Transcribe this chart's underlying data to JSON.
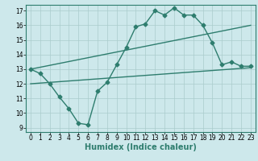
{
  "line1_x": [
    0,
    1,
    2,
    3,
    4,
    5,
    6,
    7,
    8,
    9,
    10,
    11,
    12,
    13,
    14,
    15,
    16,
    17,
    18,
    19,
    20,
    21,
    22,
    23
  ],
  "line1_y": [
    13.0,
    12.7,
    12.0,
    11.1,
    10.3,
    9.3,
    9.2,
    11.5,
    12.1,
    13.3,
    14.5,
    15.9,
    16.1,
    17.0,
    16.7,
    17.2,
    16.7,
    16.7,
    16.0,
    14.8,
    13.3,
    13.5,
    13.2,
    13.2
  ],
  "line2_x": [
    0,
    23
  ],
  "line2_y": [
    12.0,
    13.1
  ],
  "line3_x": [
    0,
    23
  ],
  "line3_y": [
    13.0,
    16.0
  ],
  "line_color": "#2e7d6e",
  "bg_color": "#cde8eb",
  "grid_color": "#aacccc",
  "xlabel": "Humidex (Indice chaleur)",
  "xlim_min": -0.5,
  "xlim_max": 23.5,
  "ylim_min": 8.7,
  "ylim_max": 17.4,
  "xticks": [
    0,
    1,
    2,
    3,
    4,
    5,
    6,
    7,
    8,
    9,
    10,
    11,
    12,
    13,
    14,
    15,
    16,
    17,
    18,
    19,
    20,
    21,
    22,
    23
  ],
  "yticks": [
    9,
    10,
    11,
    12,
    13,
    14,
    15,
    16,
    17
  ],
  "marker": "D",
  "markersize": 2.5,
  "linewidth": 1.0,
  "xlabel_fontsize": 7,
  "tick_fontsize": 5.5
}
